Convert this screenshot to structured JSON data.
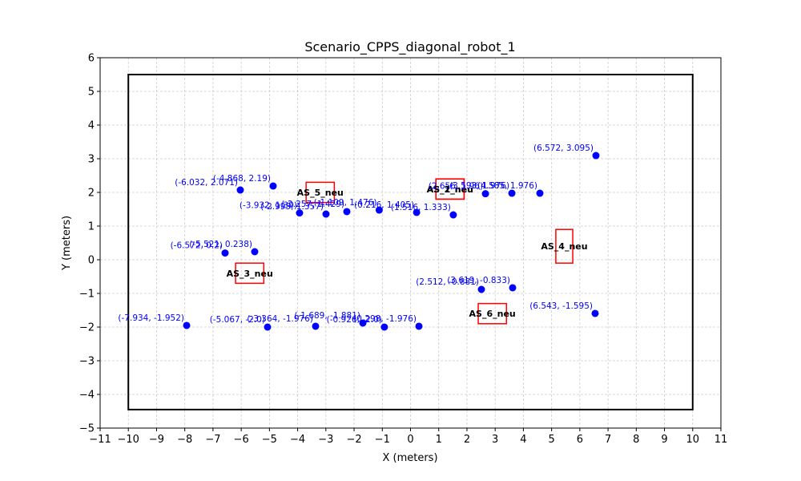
{
  "chart_data": {
    "type": "scatter",
    "title": "Scenario_CPPS_diagonal_robot_1",
    "xlabel": "X (meters)",
    "ylabel": "Y (meters)",
    "xlim": [
      -11,
      11
    ],
    "ylim": [
      -5,
      6
    ],
    "xticks": [
      -11,
      -10,
      -9,
      -8,
      -7,
      -6,
      -5,
      -4,
      -3,
      -2,
      -1,
      0,
      1,
      2,
      3,
      4,
      5,
      6,
      7,
      8,
      9,
      10,
      11
    ],
    "yticks": [
      -5,
      -4,
      -3,
      -2,
      -1,
      0,
      1,
      2,
      3,
      4,
      5,
      6
    ],
    "grid": true,
    "colors": {
      "points": "#0000ff",
      "labels": "#0000ff",
      "boundary": "#000000",
      "stations": "#ff0000",
      "grid": "#cccccc"
    },
    "boundary": {
      "x": [
        -10,
        10
      ],
      "y": [
        -4.45,
        5.5
      ]
    },
    "points": [
      {
        "x": 6.572,
        "y": 3.095,
        "label": "(6.572, 3.095)"
      },
      {
        "x": -6.032,
        "y": 2.071,
        "label": "(-6.032, 2.071)"
      },
      {
        "x": -4.868,
        "y": 2.19,
        "label": "(-4.868, 2.19)"
      },
      {
        "x": -3.932,
        "y": 1.39,
        "label": "(-3.932, 1.39)"
      },
      {
        "x": -2.995,
        "y": 1.357,
        "label": "(-2.995, 1.357)"
      },
      {
        "x": -2.257,
        "y": 1.429,
        "label": "(-2.257, 1.429)"
      },
      {
        "x": -1.109,
        "y": 1.476,
        "label": "(-1.109, 1.476)"
      },
      {
        "x": 0.216,
        "y": 1.405,
        "label": "(0.216, 1.405)"
      },
      {
        "x": 1.516,
        "y": 1.333,
        "label": "(1.516, 1.333)"
      },
      {
        "x": 2.656,
        "y": 1.96,
        "label": "(2.656, 1.96)"
      },
      {
        "x": 3.593,
        "y": 1.976,
        "label": "(3.593, 1.976)"
      },
      {
        "x": 4.585,
        "y": 1.976,
        "label": "(4.585, 1.976)"
      },
      {
        "x": -6.572,
        "y": 0.2,
        "label": "(-6.572, 0.2)"
      },
      {
        "x": -5.521,
        "y": 0.238,
        "label": "(-5.521, 0.238)"
      },
      {
        "x": 2.512,
        "y": -0.881,
        "label": "(2.512, -0.881)"
      },
      {
        "x": 3.619,
        "y": -0.833,
        "label": "(3.619, -0.833)"
      },
      {
        "x": 6.543,
        "y": -1.595,
        "label": "(6.543, -1.595)"
      },
      {
        "x": -7.934,
        "y": -1.952,
        "label": "(-7.934, -1.952)"
      },
      {
        "x": -5.067,
        "y": -2.0,
        "label": "(-5.067, -2.0)"
      },
      {
        "x": -3.364,
        "y": -1.976,
        "label": "(-3.364, -1.976)"
      },
      {
        "x": -1.689,
        "y": -1.881,
        "label": "(-1.689, -1.881)"
      },
      {
        "x": -0.926,
        "y": -2.0,
        "label": "(-0.926, -2.0)"
      },
      {
        "x": 0.298,
        "y": -1.976,
        "label": "(0.298, -1.976)"
      }
    ],
    "stations": [
      {
        "name": "AS_1_neu",
        "x": [
          0.9,
          1.9
        ],
        "y": [
          1.8,
          2.4
        ]
      },
      {
        "name": "AS_2_neu",
        "x": [
          0.9,
          1.9
        ],
        "y": [
          1.8,
          2.4
        ]
      },
      {
        "name": "AS_3_neu",
        "x": [
          -6.2,
          -5.2
        ],
        "y": [
          -0.7,
          -0.1
        ]
      },
      {
        "name": "AS_4_neu",
        "x": [
          5.15,
          5.75
        ],
        "y": [
          -0.1,
          0.9
        ]
      },
      {
        "name": "AS_5_neu",
        "x": [
          -3.7,
          -2.7
        ],
        "y": [
          1.7,
          2.3
        ]
      },
      {
        "name": "AS_6_neu",
        "x": [
          2.4,
          3.4
        ],
        "y": [
          -1.9,
          -1.3
        ]
      }
    ]
  }
}
